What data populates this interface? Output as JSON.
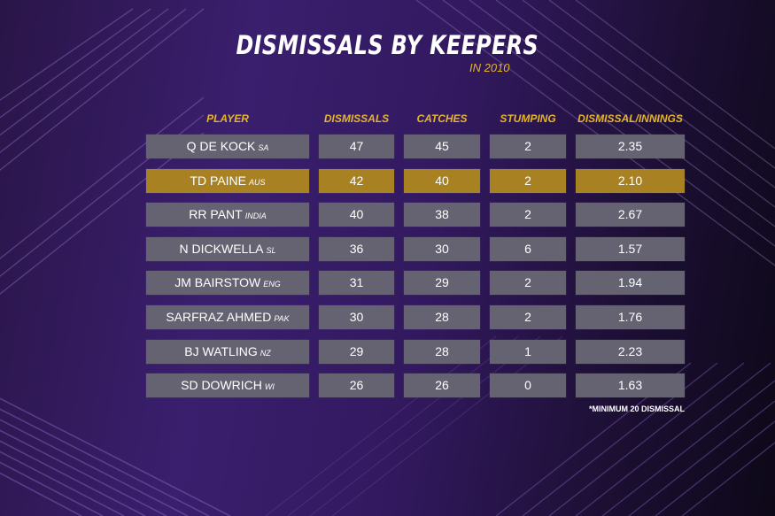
{
  "title": "DISMISSALS BY KEEPERS",
  "subtitle": "IN 2010",
  "footnote": "*MINIMUM 20 DISMISSAL",
  "colors": {
    "accent": "#e6b427",
    "cell": "#656371",
    "highlight_cell": "#a88122",
    "text": "#ffffff"
  },
  "columns": [
    "PLAYER",
    "DISMISSALS",
    "CATCHES",
    "STUMPING",
    "DISMISSAL/INNINGS"
  ],
  "rows": [
    {
      "player": "Q DE KOCK",
      "country": "SA",
      "dismissals": "47",
      "catches": "45",
      "stumping": "2",
      "dpi": "2.35",
      "highlight": false
    },
    {
      "player": "TD PAINE",
      "country": "AUS",
      "dismissals": "42",
      "catches": "40",
      "stumping": "2",
      "dpi": "2.10",
      "highlight": true
    },
    {
      "player": "RR PANT",
      "country": "INDIA",
      "dismissals": "40",
      "catches": "38",
      "stumping": "2",
      "dpi": "2.67",
      "highlight": false
    },
    {
      "player": "N DICKWELLA",
      "country": "SL",
      "dismissals": "36",
      "catches": "30",
      "stumping": "6",
      "dpi": "1.57",
      "highlight": false
    },
    {
      "player": "JM BAIRSTOW",
      "country": "ENG",
      "dismissals": "31",
      "catches": "29",
      "stumping": "2",
      "dpi": "1.94",
      "highlight": false
    },
    {
      "player": "SARFRAZ AHMED",
      "country": "PAK",
      "dismissals": "30",
      "catches": "28",
      "stumping": "2",
      "dpi": "1.76",
      "highlight": false
    },
    {
      "player": "BJ WATLING",
      "country": "NZ",
      "dismissals": "29",
      "catches": "28",
      "stumping": "1",
      "dpi": "2.23",
      "highlight": false
    },
    {
      "player": "SD DOWRICH",
      "country": "WI",
      "dismissals": "26",
      "catches": "26",
      "stumping": "0",
      "dpi": "1.63",
      "highlight": false
    }
  ],
  "chart_data": {
    "type": "table",
    "title": "DISMISSALS BY KEEPERS",
    "subtitle": "IN 2010",
    "columns": [
      "PLAYER",
      "DISMISSALS",
      "CATCHES",
      "STUMPING",
      "DISMISSAL/INNINGS"
    ],
    "rows": [
      [
        "Q DE KOCK SA",
        47,
        45,
        2,
        2.35
      ],
      [
        "TD PAINE AUS",
        42,
        40,
        2,
        2.1
      ],
      [
        "RR PANT INDIA",
        40,
        38,
        2,
        2.67
      ],
      [
        "N DICKWELLA SL",
        36,
        30,
        6,
        1.57
      ],
      [
        "JM BAIRSTOW ENG",
        31,
        29,
        2,
        1.94
      ],
      [
        "SARFRAZ AHMED PAK",
        30,
        28,
        2,
        1.76
      ],
      [
        "BJ WATLING NZ",
        29,
        28,
        1,
        2.23
      ],
      [
        "SD DOWRICH WI",
        26,
        26,
        0,
        1.63
      ]
    ]
  }
}
